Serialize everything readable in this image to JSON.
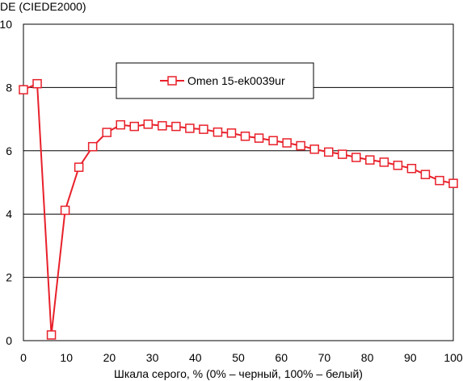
{
  "chart_data": {
    "type": "line",
    "ylabel": "DE (CIEDE2000)",
    "xlabel": "Шкала серого, % (0% – черный, 100% – белый)",
    "xlim": [
      0,
      100
    ],
    "ylim": [
      0,
      10
    ],
    "xticks": [
      0,
      10,
      20,
      30,
      40,
      50,
      60,
      70,
      80,
      90,
      100
    ],
    "yticks": [
      0,
      2,
      4,
      6,
      8,
      10
    ],
    "grid": "horizontal",
    "legend_position": "top-center",
    "series": [
      {
        "name": "Omen 15-ek0039ur",
        "color": "#e8202a",
        "marker": "square-open",
        "x": [
          0,
          3.2,
          6.5,
          9.7,
          12.9,
          16.1,
          19.4,
          22.6,
          25.8,
          29.0,
          32.3,
          35.5,
          38.7,
          41.9,
          45.2,
          48.4,
          51.6,
          54.8,
          58.1,
          61.3,
          64.5,
          67.7,
          71.0,
          74.2,
          77.4,
          80.6,
          83.9,
          87.1,
          90.3,
          93.5,
          96.8,
          100
        ],
        "y": [
          7.93,
          8.12,
          0.18,
          4.12,
          5.48,
          6.13,
          6.58,
          6.82,
          6.77,
          6.84,
          6.79,
          6.77,
          6.71,
          6.68,
          6.59,
          6.56,
          6.46,
          6.4,
          6.32,
          6.25,
          6.16,
          6.05,
          5.96,
          5.89,
          5.79,
          5.71,
          5.64,
          5.54,
          5.44,
          5.25,
          5.06,
          4.97
        ]
      }
    ]
  }
}
